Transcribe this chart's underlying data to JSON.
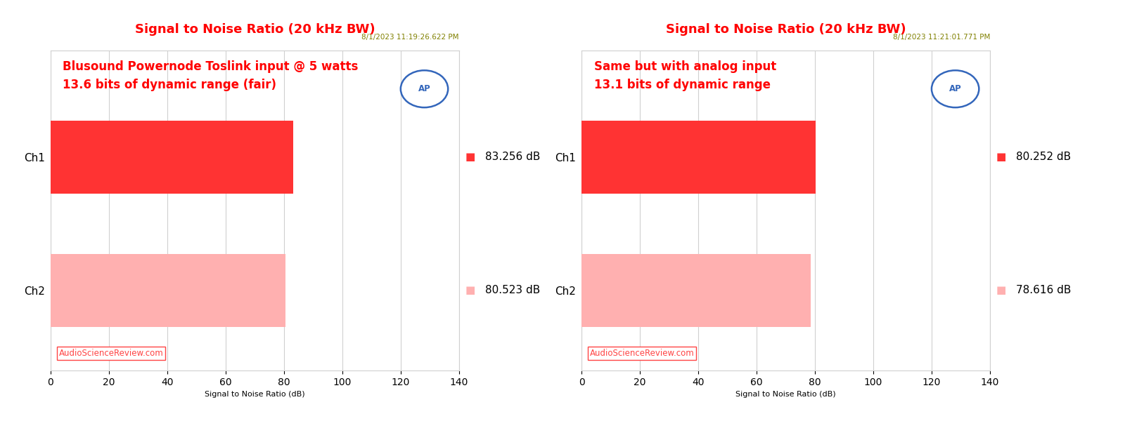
{
  "plots": [
    {
      "title": "Signal to Noise Ratio (20 kHz BW)",
      "timestamp": "8/1/2023 11:19:26.622 PM",
      "annotation_line1": "Blusound Powernode Toslink input @ 5 watts",
      "annotation_line2": "13.6 bits of dynamic range (fair)",
      "ch1_value": 83.256,
      "ch2_value": 80.523,
      "ch1_label": "83.256 dB",
      "ch2_label": "80.523 dB",
      "ch1_color": "#FF3333",
      "ch2_color": "#FFB0B0"
    },
    {
      "title": "Signal to Noise Ratio (20 kHz BW)",
      "timestamp": "8/1/2023 11:21:01.771 PM",
      "annotation_line1": "Same but with analog input",
      "annotation_line2": "13.1 bits of dynamic range",
      "ch1_value": 80.252,
      "ch2_value": 78.616,
      "ch1_label": "80.252 dB",
      "ch2_label": "78.616 dB",
      "ch1_color": "#FF3333",
      "ch2_color": "#FFB0B0"
    }
  ],
  "xlim": [
    0,
    140
  ],
  "xticks": [
    0,
    20,
    40,
    60,
    80,
    100,
    120,
    140
  ],
  "xlabel": "Signal to Noise Ratio (dB)",
  "title_color": "#FF0000",
  "title_fontsize": 13,
  "timestamp_color": "#808000",
  "annotation_color": "#FF0000",
  "annotation_fontsize": 12,
  "watermark_text": "AudioScienceReview.com",
  "watermark_color": "#FF4444",
  "background_color": "#FFFFFF",
  "plot_bg_color": "#FFFFFF",
  "grid_color": "#D0D0D0",
  "bar_height": 0.55,
  "xlabel_fontsize": 8,
  "tick_fontsize": 10,
  "value_fontsize": 11,
  "ap_circle_color": "#3366BB",
  "ap_fill_color": "#FFFFFF",
  "ytick_fontsize": 11
}
